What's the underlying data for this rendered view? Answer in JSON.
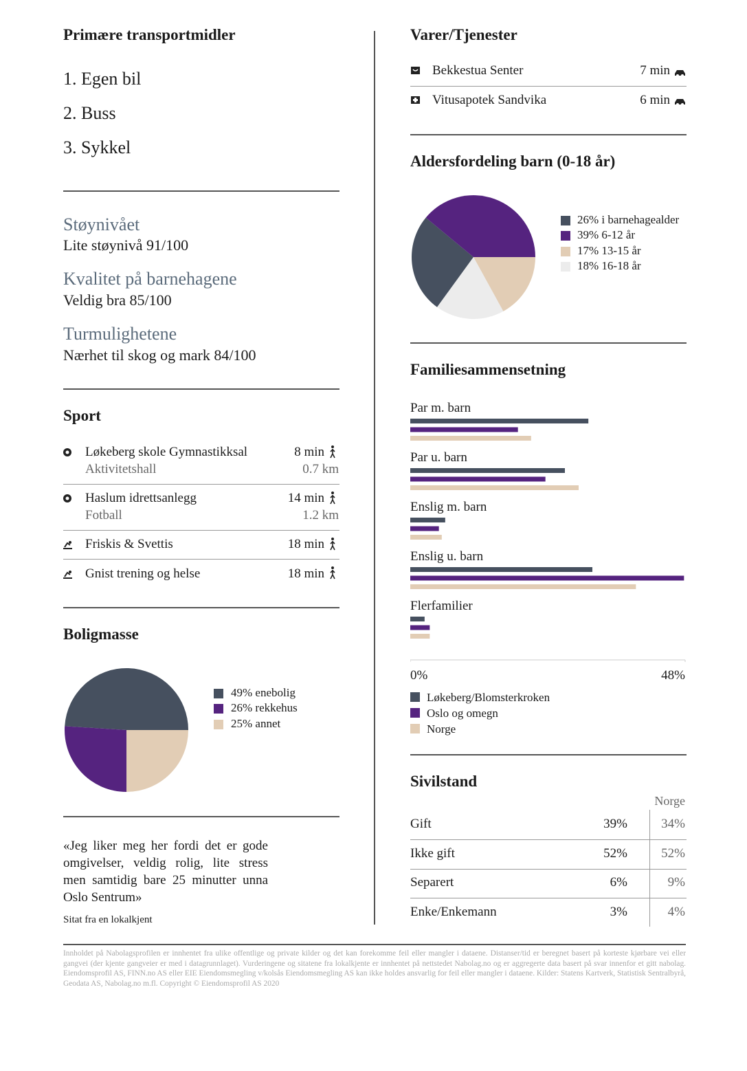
{
  "transport": {
    "title": "Primære transportmidler",
    "items": [
      "1. Egen bil",
      "2. Buss",
      "3. Sykkel"
    ]
  },
  "ratings": [
    {
      "title": "Støynivået",
      "text": "Lite støynivå 91/100"
    },
    {
      "title": "Kvalitet på barnehagene",
      "text": "Veldig bra 85/100"
    },
    {
      "title": "Turmulighetene",
      "text": "Nærhet til skog og mark 84/100"
    }
  ],
  "sport": {
    "title": "Sport",
    "rows": [
      {
        "name": "Løkeberg skole Gymnastikksal",
        "sub": "Aktivitetshall",
        "time": "8 min",
        "dist": "0.7 km"
      },
      {
        "name": "Haslum idrettsanlegg",
        "sub": "Fotball",
        "time": "14 min",
        "dist": "1.2 km"
      },
      {
        "name": "Friskis & Svettis",
        "time": "18 min"
      },
      {
        "name": "Gnist trening og helse",
        "time": "18 min"
      }
    ]
  },
  "boligmasse": {
    "type": "pie",
    "title": "Boligmasse",
    "labels": [
      "49% enebolig",
      "26% rekkehus",
      "25% annet"
    ],
    "values": [
      49,
      26,
      25
    ],
    "colors": [
      "#46505f",
      "#55237f",
      "#e2cdb5"
    ]
  },
  "quote": {
    "text": "«Jeg liker meg her fordi det er gode omgivelser, veldig rolig, lite stress men samtidig bare 25 minutter unna Oslo Sentrum»",
    "source": "Sitat fra en lokalkjent"
  },
  "varer": {
    "title": "Varer/Tjenester",
    "rows": [
      {
        "name": "Bekkestua Senter",
        "time": "7 min"
      },
      {
        "name": "Vitusapotek Sandvika",
        "time": "6 min"
      }
    ]
  },
  "alders": {
    "type": "pie",
    "title": "Aldersfordeling barn (0-18 år)",
    "labels": [
      "26% i barnehagealder",
      "39% 6-12 år",
      "17% 13-15 år",
      "18% 16-18 år"
    ],
    "values": [
      26,
      39,
      17,
      18
    ],
    "colors": [
      "#46505f",
      "#55237f",
      "#e2cdb5",
      "#ececec"
    ]
  },
  "familie": {
    "type": "bar",
    "title": "Familiesammensetning",
    "categories": [
      "Par m. barn",
      "Par u. barn",
      "Enslig m. barn",
      "Enslig u. barn",
      "Flerfamilier"
    ],
    "series": [
      {
        "name": "Løkeberg/Blomsterkroken",
        "color": "#46505f",
        "values": [
          31.1,
          27,
          6.1,
          31.8,
          2.5
        ]
      },
      {
        "name": "Oslo og omegn",
        "color": "#55237f",
        "values": [
          18.8,
          23.6,
          5,
          47.8,
          3.4
        ]
      },
      {
        "name": "Norge",
        "color": "#e2cdb5",
        "values": [
          21.1,
          29.4,
          5.5,
          39.4,
          3.4
        ]
      }
    ],
    "xlim": [
      0,
      48
    ],
    "xticks": [
      {
        "value": 0,
        "label": "0%"
      },
      {
        "value": 48,
        "label": "48%"
      }
    ]
  },
  "sivilstand": {
    "title": "Sivilstand",
    "header": "Norge",
    "rows": [
      [
        "Gift",
        "39%",
        "34%"
      ],
      [
        "Ikke gift",
        "52%",
        "52%"
      ],
      [
        "Separert",
        "6%",
        "9%"
      ],
      [
        "Enke/Enkemann",
        "3%",
        "4%"
      ]
    ]
  },
  "footer": "Innholdet på Nabolagsprofilen er innhentet fra ulike offentlige og private kilder og det kan forekomme feil eller mangler i dataene. Distanser/tid er beregnet basert på korteste kjørbare vei eller gangvei (der kjente gangveier er med i datagrunnlaget). Vurderingene og sitatene fra lokalkjente er innhentet på nettstedet Nabolag.no og er aggregerte data basert på svar innenfor et gitt nabolag. Eiendomsprofil AS, FINN.no AS eller EIE Eiendomsmegling v/kolsås Eiendomsmegling AS kan ikke holdes ansvarlig for feil eller mangler i dataene. Kilder: Statens Kartverk, Statistisk Sentralbyrå, Geodata AS, Nabolag.no m.fl. Copyright © Eiendomsprofil AS 2020"
}
